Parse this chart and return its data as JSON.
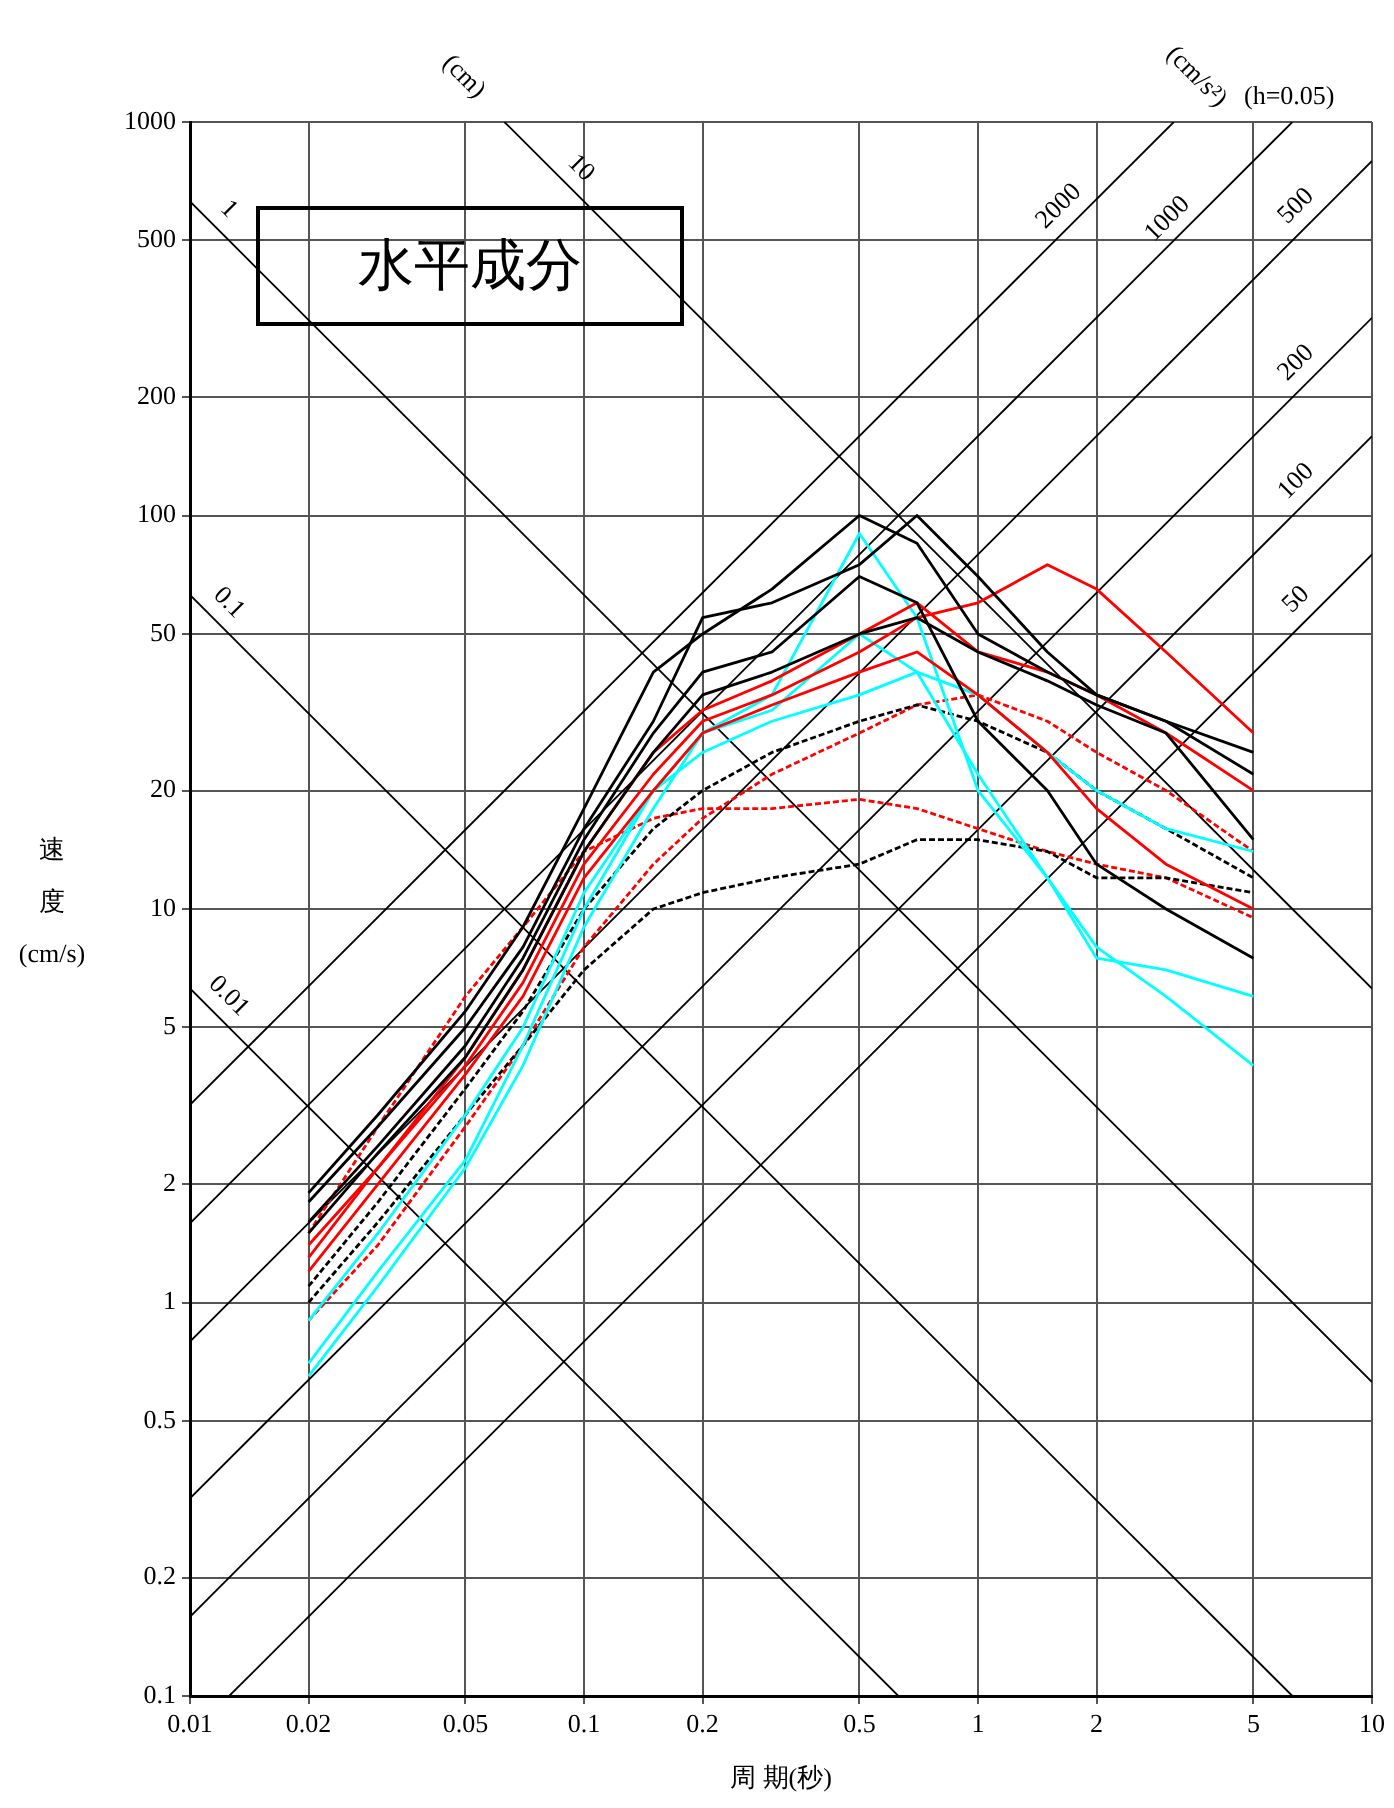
{
  "chart_data": {
    "type": "line",
    "title": "水平成分",
    "xlabel": "周 期(秒)",
    "ylabel": "速度(cm/s)",
    "log": "xy",
    "grid": true,
    "legend": false,
    "marker": "none",
    "xlim": [
      0.01,
      10
    ],
    "xticks": [
      0.01,
      0.02,
      0.05,
      0.1,
      0.2,
      0.5,
      1,
      2,
      5,
      10
    ],
    "ylim": [
      0.1,
      1000
    ],
    "yticks": [
      0.1,
      0.2,
      0.5,
      1,
      2,
      5,
      10,
      20,
      50,
      100,
      200,
      500,
      1000
    ],
    "x": [
      0.02,
      0.03,
      0.05,
      0.07,
      0.1,
      0.15,
      0.2,
      0.3,
      0.5,
      0.7,
      1,
      1.5,
      2,
      3,
      5
    ],
    "series": [
      {
        "color": "#000000",
        "values": [
          1.9,
          3,
          5.5,
          9,
          18,
          40,
          50,
          65,
          100,
          85,
          50,
          40,
          35,
          30,
          22
        ]
      },
      {
        "color": "#000000",
        "values": [
          1.8,
          2.8,
          5,
          8,
          16,
          30,
          55,
          60,
          75,
          100,
          70,
          45,
          35,
          30,
          25
        ]
      },
      {
        "color": "#000000",
        "values": [
          1.6,
          2.5,
          4.5,
          7.5,
          15,
          28,
          40,
          45,
          70,
          60,
          30,
          20,
          13,
          10,
          7.5
        ]
      },
      {
        "color": "#000000",
        "values": [
          1.5,
          2.4,
          4.2,
          7,
          14,
          25,
          35,
          40,
          50,
          55,
          45,
          38,
          33,
          28,
          15
        ]
      },
      {
        "color": "#ff0000",
        "values": [
          1.3,
          2.2,
          4,
          6.5,
          13,
          22,
          30,
          35,
          45,
          55,
          60,
          75,
          65,
          45,
          28
        ]
      },
      {
        "color": "#ff0000",
        "values": [
          1.2,
          2,
          3.8,
          6,
          12,
          20,
          28,
          33,
          40,
          45,
          35,
          25,
          18,
          13,
          10
        ]
      },
      {
        "color": "#ff0000",
        "values": [
          1.4,
          2.2,
          4.2,
          7,
          14,
          25,
          32,
          38,
          50,
          60,
          45,
          40,
          35,
          28,
          20
        ]
      },
      {
        "color": "#00ffff",
        "values": [
          0.65,
          1.1,
          2.2,
          4,
          9,
          18,
          28,
          32,
          50,
          40,
          22,
          12,
          8,
          6,
          4
        ]
      },
      {
        "color": "#00ffff",
        "values": [
          0.7,
          1.2,
          2.3,
          4.5,
          10,
          20,
          28,
          35,
          90,
          55,
          20,
          12,
          7.5,
          7,
          6
        ]
      },
      {
        "color": "#00ffff",
        "values": [
          0.9,
          1.5,
          3,
          5,
          11,
          20,
          25,
          30,
          35,
          40,
          35,
          25,
          20,
          16,
          14
        ]
      },
      {
        "color": "#000000",
        "line_style": "dashed",
        "values": [
          1.1,
          1.8,
          3.5,
          5.5,
          10,
          16,
          20,
          25,
          30,
          33,
          30,
          25,
          20,
          16,
          12
        ]
      },
      {
        "color": "#000000",
        "line_style": "dashed",
        "values": [
          1,
          1.6,
          3,
          4.5,
          7,
          10,
          11,
          12,
          13,
          15,
          15,
          14,
          12,
          12,
          11
        ]
      },
      {
        "color": "#ff0000",
        "line_style": "dashed",
        "values": [
          1.5,
          2.8,
          6,
          9,
          14,
          17,
          18,
          18,
          19,
          18,
          16,
          14,
          13,
          12,
          9.5
        ]
      },
      {
        "color": "#ff0000",
        "line_style": "dashed",
        "values": [
          0.9,
          1.4,
          2.8,
          4.5,
          8,
          13,
          17,
          22,
          28,
          33,
          35,
          30,
          25,
          20,
          14
        ]
      },
      {
        "color": "#000000",
        "x": [
          0.01,
          0.628
        ],
        "values": [
          6.28,
          0.1
        ]
      },
      {
        "color": "#000000",
        "x": [
          0.01,
          6.28
        ],
        "values": [
          62.8,
          0.1
        ]
      },
      {
        "color": "#000000",
        "x": [
          0.01,
          10
        ],
        "values": [
          628,
          0.628
        ]
      },
      {
        "color": "#000000",
        "x": [
          0.0628,
          10
        ],
        "values": [
          1000,
          6.28
        ]
      },
      {
        "color": "#000000",
        "x": [
          0.01257,
          10
        ],
        "values": [
          0.1,
          79.6
        ]
      },
      {
        "color": "#000000",
        "x": [
          0.01,
          10
        ],
        "values": [
          0.159,
          159
        ]
      },
      {
        "color": "#000000",
        "x": [
          0.01,
          10
        ],
        "values": [
          0.318,
          318
        ]
      },
      {
        "color": "#000000",
        "x": [
          0.01,
          10
        ],
        "values": [
          0.796,
          796
        ]
      },
      {
        "color": "#000000",
        "x": [
          0.01,
          6.28
        ],
        "values": [
          1.59,
          1000
        ]
      },
      {
        "color": "#000000",
        "x": [
          0.01,
          3.14
        ],
        "values": [
          3.18,
          1000
        ]
      }
    ],
    "annotations": [
      "(cm)",
      "(cm/s²)",
      "(h=0.05)",
      {
        "text": "0.01",
        "x": 0.0115,
        "y": 5.5
      },
      {
        "text": "0.1",
        "x": 0.0115,
        "y": 55
      },
      {
        "text": "1",
        "x": 0.0115,
        "y": 550
      },
      {
        "text": "10",
        "x": 0.09,
        "y": 700
      },
      {
        "text": "2000",
        "x": 1.75,
        "y": 560
      },
      {
        "text": "1000",
        "x": 3.3,
        "y": 520
      },
      {
        "text": "500",
        "x": 7,
        "y": 560
      },
      {
        "text": "200",
        "x": 7,
        "y": 224
      },
      {
        "text": "100",
        "x": 7,
        "y": 112
      },
      {
        "text": "50",
        "x": 7,
        "y": 56
      }
    ]
  }
}
